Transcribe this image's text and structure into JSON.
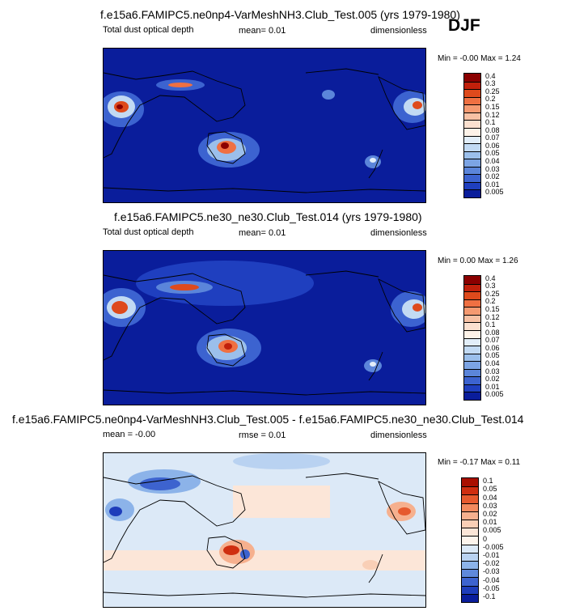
{
  "season": "DJF",
  "chart_data": [
    {
      "type": "heatmap",
      "title": "f.e15a6.FAMIPC5.ne0np4-VarMeshNH3.Club_Test.005 (yrs 1979-1980)",
      "left_label": "Total dust optical depth",
      "mean_text": "mean=  0.01",
      "units": "dimensionless",
      "minmax_text": "Min =  -0.00 Max =  1.24",
      "colorbar": {
        "levels": [
          "0.4",
          "0.3",
          "0.25",
          "0.2",
          "0.15",
          "0.12",
          "0.1",
          "0.08",
          "0.07",
          "0.06",
          "0.05",
          "0.04",
          "0.03",
          "0.02",
          "0.01",
          "0.005"
        ],
        "colors": [
          "#8b0000",
          "#c1200b",
          "#de4a1c",
          "#ef7042",
          "#f59a71",
          "#f7c1a4",
          "#fbe0cf",
          "#fdf2e8",
          "#e2eef9",
          "#c2daf3",
          "#9bbfeb",
          "#7ca4e4",
          "#5b85da",
          "#3c63d0",
          "#1f3fbf",
          "#0a1d9b"
        ]
      }
    },
    {
      "type": "heatmap",
      "title": "f.e15a6.FAMIPC5.ne30_ne30.Club_Test.014 (yrs 1979-1980)",
      "left_label": "Total dust optical depth",
      "mean_text": "mean=  0.01",
      "units": "dimensionless",
      "minmax_text": "Min =  0.00 Max =  1.26",
      "colorbar": {
        "levels": [
          "0.4",
          "0.3",
          "0.25",
          "0.2",
          "0.15",
          "0.12",
          "0.1",
          "0.08",
          "0.07",
          "0.06",
          "0.05",
          "0.04",
          "0.03",
          "0.02",
          "0.01",
          "0.005"
        ],
        "colors": [
          "#8b0000",
          "#c1200b",
          "#de4a1c",
          "#ef7042",
          "#f59a71",
          "#f7c1a4",
          "#fbe0cf",
          "#fdf2e8",
          "#e2eef9",
          "#c2daf3",
          "#9bbfeb",
          "#7ca4e4",
          "#5b85da",
          "#3c63d0",
          "#1f3fbf",
          "#0a1d9b"
        ]
      }
    },
    {
      "type": "heatmap",
      "title": "f.e15a6.FAMIPC5.ne0np4-VarMeshNH3.Club_Test.005 - f.e15a6.FAMIPC5.ne30_ne30.Club_Test.014",
      "left_label": "mean = -0.00",
      "mid_label": "rmse =  0.01",
      "units": "dimensionless",
      "minmax_text": "Min =  -0.17 Max =  0.11",
      "colorbar": {
        "levels": [
          "0.1",
          "0.05",
          "0.04",
          "0.03",
          "0.02",
          "0.01",
          "0.005",
          "0",
          "-0.005",
          "-0.01",
          "-0.02",
          "-0.03",
          "-0.04",
          "-0.05",
          "-0.1"
        ],
        "colors": [
          "#a90f00",
          "#cf2e10",
          "#e65a2e",
          "#f28a5e",
          "#f6b08e",
          "#f9cfb6",
          "#fce6d8",
          "#fdf4ec",
          "#dce9f7",
          "#b9d2f1",
          "#8cb3e9",
          "#5f89dc",
          "#3d63cf",
          "#1e3dba",
          "#0a1d9b"
        ]
      }
    }
  ]
}
